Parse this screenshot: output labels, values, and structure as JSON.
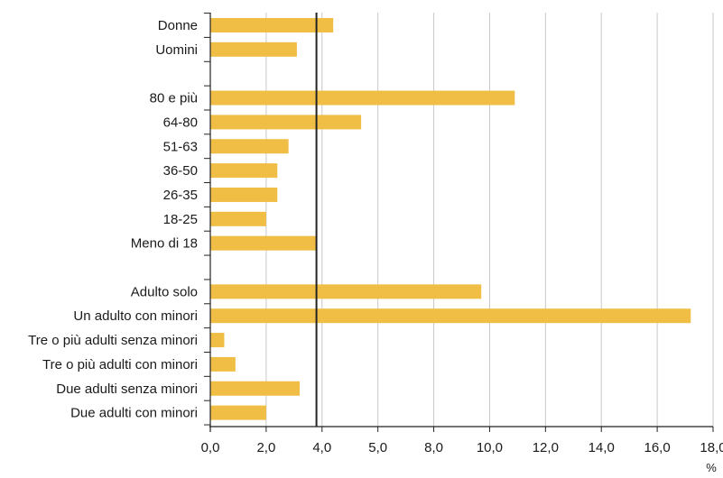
{
  "chart_data": {
    "type": "bar",
    "orientation": "horizontal",
    "title": "",
    "xlabel": "",
    "x_unit": "%",
    "ylabel": "",
    "xlim": [
      0,
      18
    ],
    "x_ticks": [
      "0,0",
      "2,0",
      "4,0",
      "5,0",
      "8,0",
      "10,0",
      "12,0",
      "14,0",
      "16,0",
      "18,0"
    ],
    "grid": "vertical",
    "reference_line": 3.8,
    "bar_color": "#f0be45",
    "groups": [
      [
        "Donne",
        "Uomini"
      ],
      [
        "80 e più",
        "64-80",
        "51-63",
        "36-50",
        "26-35",
        "18-25",
        "Meno di 18"
      ],
      [
        "Adulto solo",
        "Un adulto con minori",
        "Tre o più adulti senza minori",
        "Tre o più adulti con minori",
        "Due adulti senza minori",
        "Due adulti con minori"
      ]
    ],
    "categories": [
      "Donne",
      "Uomini",
      "80 e più",
      "64-80",
      "51-63",
      "36-50",
      "26-35",
      "18-25",
      "Meno di 18",
      "Adulto solo",
      "Un adulto con minori",
      "Tre o più adulti senza minori",
      "Tre o più adulti con minori",
      "Due adulti senza minori",
      "Due adulti con minori"
    ],
    "values": [
      4.4,
      3.1,
      10.9,
      5.4,
      2.8,
      2.4,
      2.4,
      2.0,
      3.8,
      9.7,
      17.2,
      0.5,
      0.9,
      3.2,
      2.0
    ]
  }
}
